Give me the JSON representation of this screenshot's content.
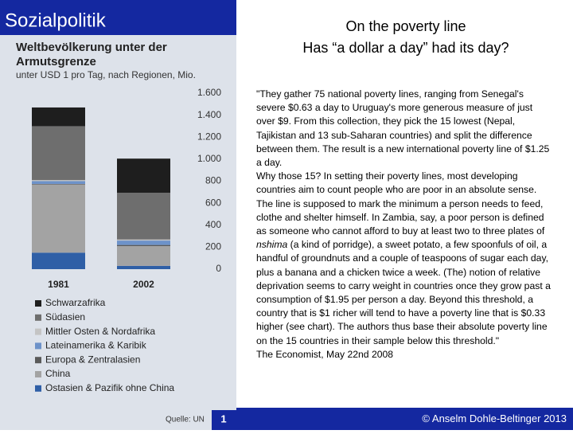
{
  "slide": {
    "section": "Sozialpolitik",
    "title_lines": [
      "On the poverty line",
      "Has “a dollar a day” had its day?"
    ],
    "paragraphs": [
      [
        "\"They gather 75 national poverty lines, ranging from Senegal's severe $0.63 a day to Uruguay's more generous measure of just over $9. From this collection, they pick the 15 lowest (Nepal, Tajikistan and 13 sub-Saharan countries) and split the difference between them. The result is a new international poverty line of $1.25 a day."
      ],
      [
        "Why those 15? In setting their poverty lines, most developing countries aim to count people who are poor in an absolute sense."
      ],
      [
        "The line is supposed to mark the minimum a person needs to feed, clothe and shelter himself. In Zambia, say, a poor person is defined as someone who cannot afford to buy at least two to three plates of ",
        "nshima",
        " (a kind of porridge), a sweet potato, a few spoonfuls of oil, a handful of groundnuts and a couple of teaspoons of sugar each day, plus a banana and a chicken twice a week. (The) notion of relative deprivation seems to carry weight in countries once they grow past a consumption of $1.95 per person a day. Beyond this threshold, a country that is $1 richer will tend to have a poverty line that is $0.33 higher (see chart). The authors thus base their absolute poverty line on the 15 countries in their sample below this threshold.\""
      ],
      [
        "The Economist, May 22nd 2008"
      ]
    ],
    "footer": "© Anselm Dohle-Beltinger 2013"
  },
  "chart_data": {
    "type": "stacked_bar",
    "title_lines": [
      "Weltbevölkerung unter der",
      "Armutsgrenze"
    ],
    "subtitle": "unter USD 1 pro Tag, nach Regionen, Mio.",
    "source": "Quelle: UN",
    "page_number": "1",
    "categories": [
      "1981",
      "2002"
    ],
    "series": [
      {
        "name": "Ostasien & Pazifik ohne China",
        "color": "#2f5fa6",
        "values": [
          150,
          30
        ]
      },
      {
        "name": "China",
        "color": "#a3a3a3",
        "values": [
          620,
          180
        ]
      },
      {
        "name": "Europa & Zentralasien",
        "color": "#5a5a5a",
        "values": [
          5,
          10
        ]
      },
      {
        "name": "Lateinamerika & Karibik",
        "color": "#6d92c9",
        "values": [
          25,
          40
        ]
      },
      {
        "name": "Mittler Osten & Nordafrika",
        "color": "#c4c4c4",
        "values": [
          10,
          10
        ]
      },
      {
        "name": "Südasien",
        "color": "#6e6e6e",
        "values": [
          490,
          425
        ]
      },
      {
        "name": "Schwarzafrika",
        "color": "#1e1e1e",
        "values": [
          170,
          310
        ]
      }
    ],
    "ylim": [
      0,
      1600
    ],
    "yticks": [
      0,
      200,
      400,
      600,
      800,
      {
        "value": 1000,
        "label": "1.000"
      },
      {
        "value": 1200,
        "label": "1.200"
      },
      {
        "value": 1400,
        "label": "1.400"
      },
      {
        "value": 1600,
        "label": "1.600"
      }
    ]
  }
}
